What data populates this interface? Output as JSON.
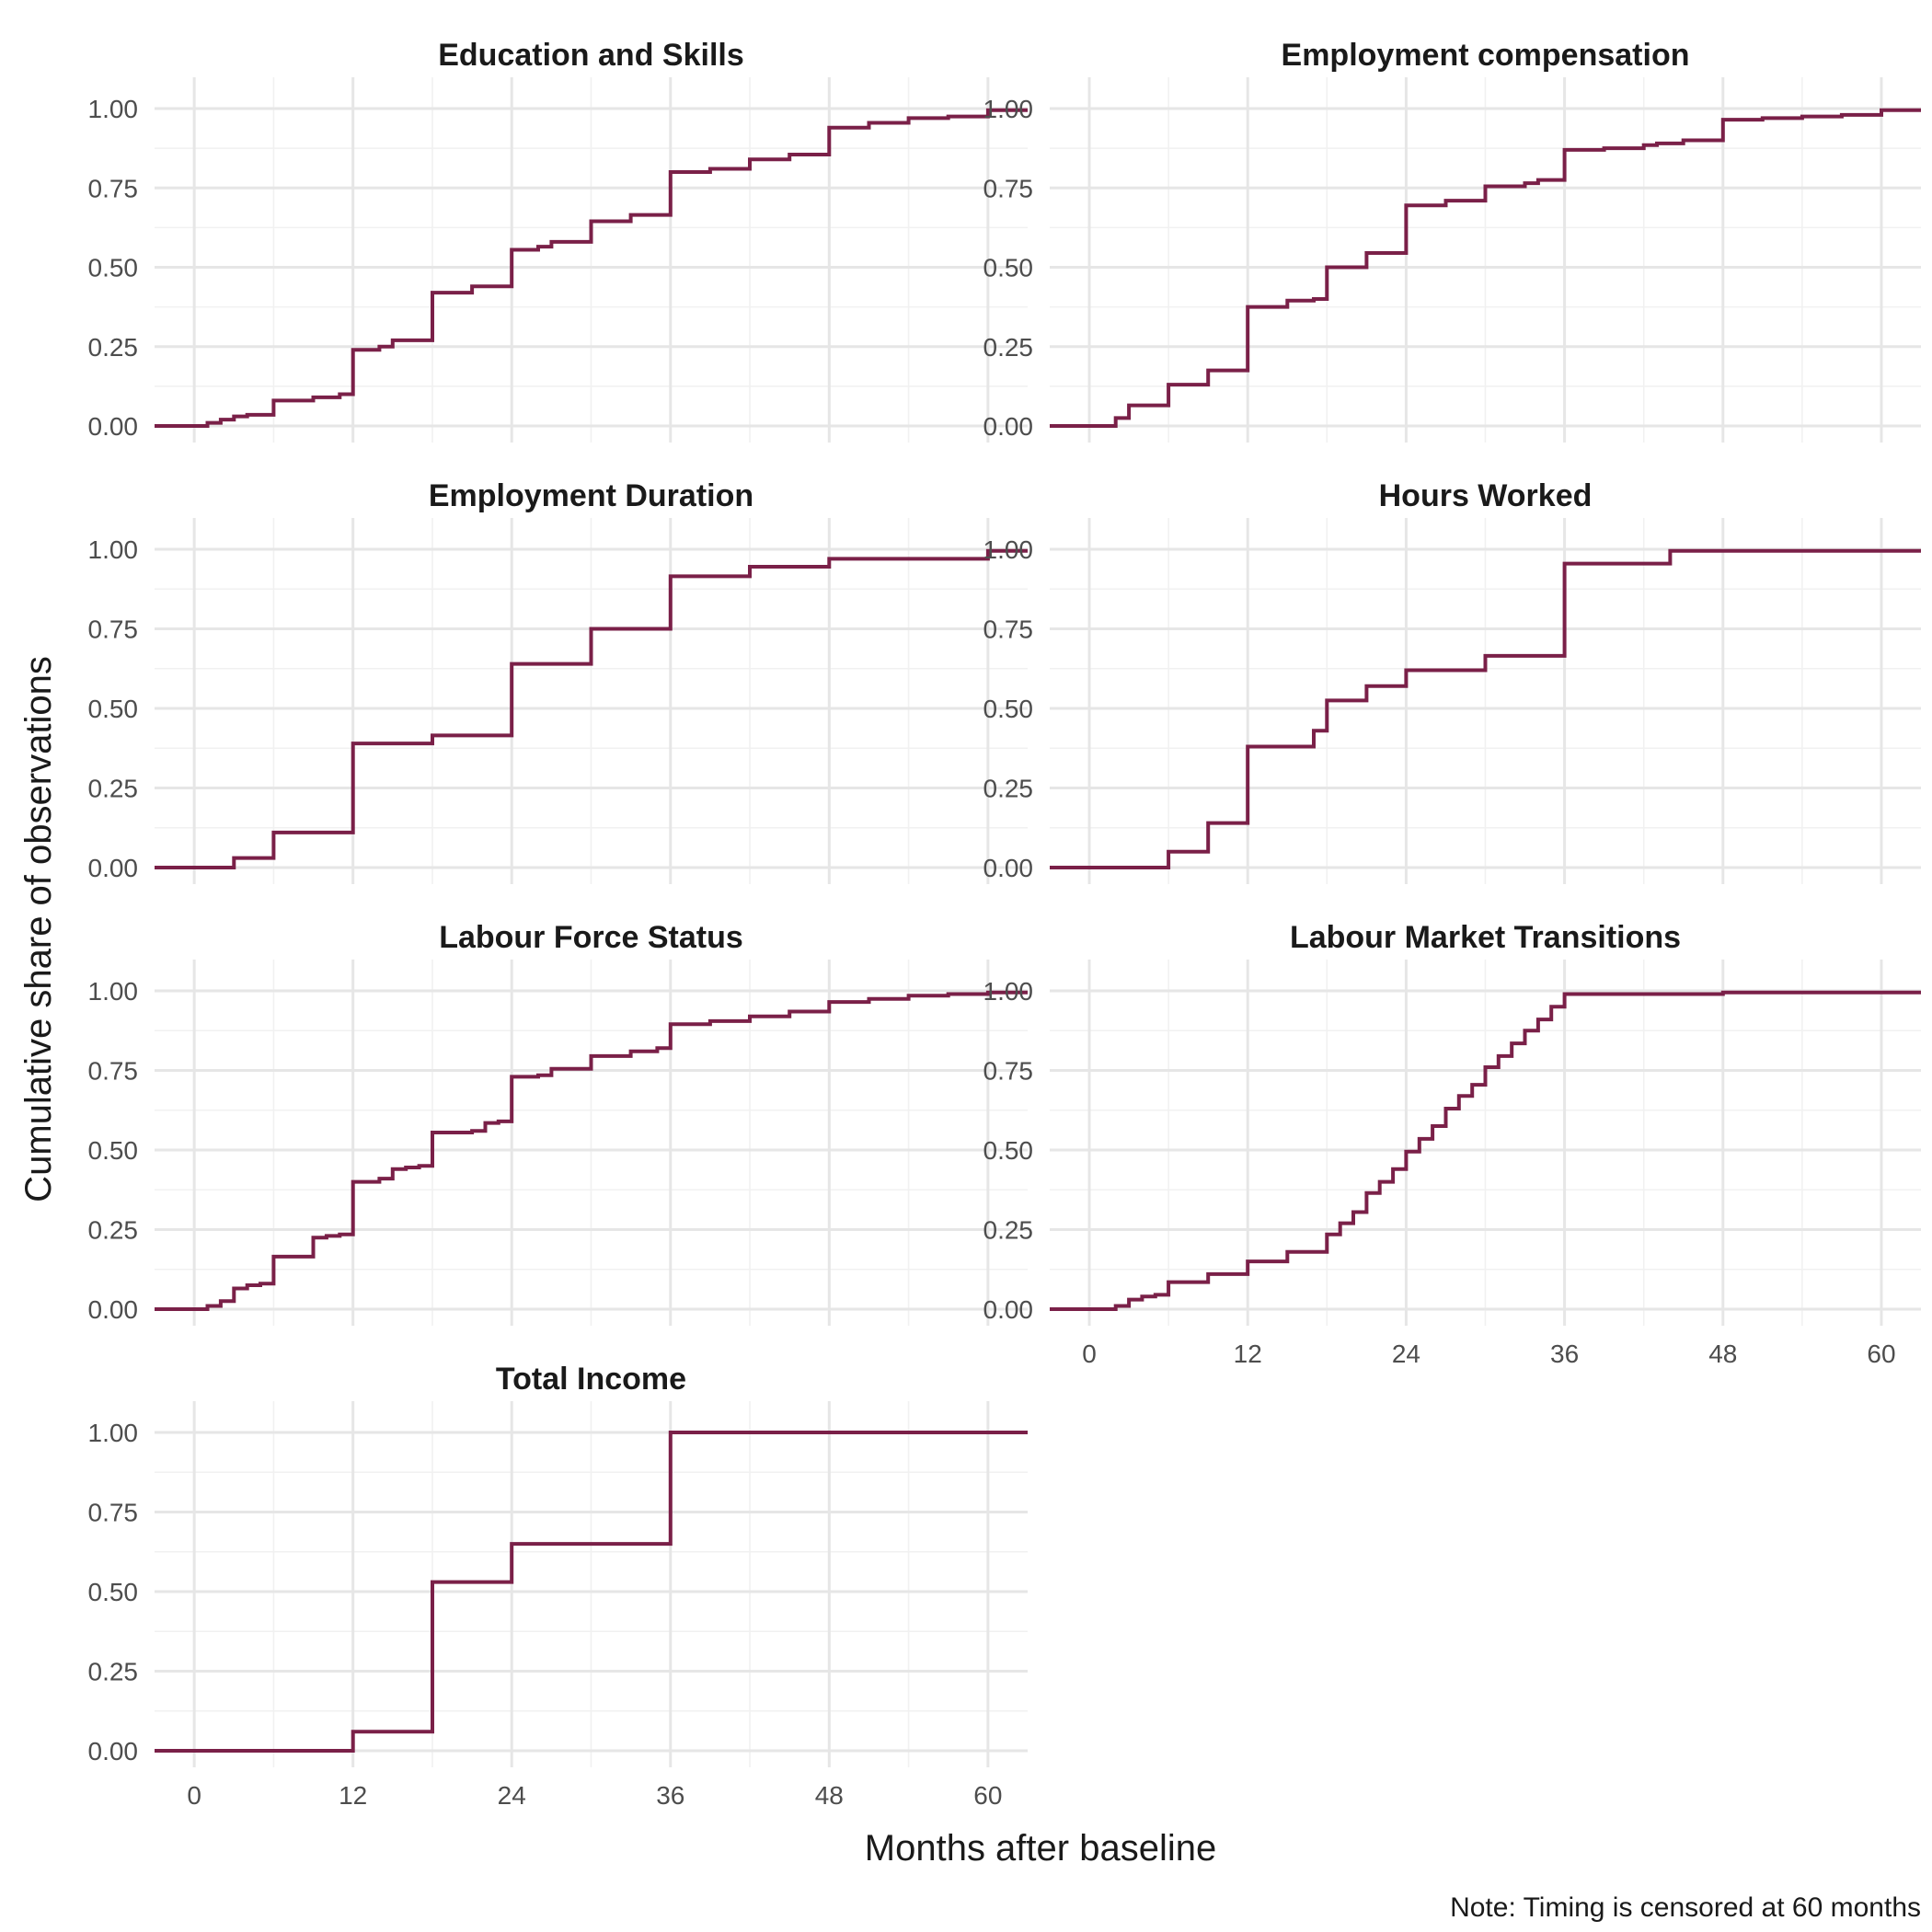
{
  "chart_data": {
    "type": "line",
    "subtype": "step-ecdf-faceted",
    "xlabel": "Months after baseline",
    "ylabel": "Cumulative share of observations",
    "caption": "Note: Timing is censored at 60 months",
    "xlim": [
      -3,
      63
    ],
    "ylim": [
      0,
      1
    ],
    "x_ticks": [
      0,
      12,
      24,
      36,
      48,
      60
    ],
    "y_ticks": [
      0,
      0.25,
      0.5,
      0.75,
      1
    ],
    "y_tick_labels": [
      "0.00",
      "0.25",
      "0.50",
      "0.75",
      "1.00"
    ],
    "x_tick_labels": [
      "0",
      "12",
      "24",
      "36",
      "48",
      "60"
    ],
    "line_color": "#7a2048",
    "grid": true,
    "facets": [
      {
        "title": "Education and Skills",
        "steps": [
          [
            -3,
            0
          ],
          [
            1,
            0.01
          ],
          [
            2,
            0.02
          ],
          [
            3,
            0.03
          ],
          [
            4,
            0.035
          ],
          [
            6,
            0.08
          ],
          [
            9,
            0.09
          ],
          [
            11,
            0.1
          ],
          [
            12,
            0.24
          ],
          [
            14,
            0.25
          ],
          [
            15,
            0.27
          ],
          [
            18,
            0.42
          ],
          [
            21,
            0.44
          ],
          [
            24,
            0.555
          ],
          [
            26,
            0.565
          ],
          [
            27,
            0.58
          ],
          [
            30,
            0.645
          ],
          [
            33,
            0.665
          ],
          [
            36,
            0.8
          ],
          [
            39,
            0.81
          ],
          [
            42,
            0.84
          ],
          [
            45,
            0.855
          ],
          [
            48,
            0.94
          ],
          [
            51,
            0.955
          ],
          [
            54,
            0.97
          ],
          [
            57,
            0.975
          ],
          [
            60,
            0.995
          ],
          [
            63,
            0.995
          ]
        ]
      },
      {
        "title": "Employment compensation",
        "steps": [
          [
            -3,
            0
          ],
          [
            2,
            0.025
          ],
          [
            3,
            0.065
          ],
          [
            6,
            0.13
          ],
          [
            9,
            0.175
          ],
          [
            12,
            0.375
          ],
          [
            15,
            0.395
          ],
          [
            17,
            0.4
          ],
          [
            18,
            0.5
          ],
          [
            21,
            0.545
          ],
          [
            24,
            0.695
          ],
          [
            27,
            0.71
          ],
          [
            30,
            0.755
          ],
          [
            33,
            0.765
          ],
          [
            34,
            0.775
          ],
          [
            36,
            0.87
          ],
          [
            39,
            0.875
          ],
          [
            42,
            0.885
          ],
          [
            43,
            0.89
          ],
          [
            45,
            0.9
          ],
          [
            48,
            0.965
          ],
          [
            51,
            0.97
          ],
          [
            54,
            0.975
          ],
          [
            57,
            0.98
          ],
          [
            60,
            0.995
          ],
          [
            63,
            0.995
          ]
        ]
      },
      {
        "title": "Employment Duration",
        "steps": [
          [
            -3,
            0
          ],
          [
            3,
            0.03
          ],
          [
            6,
            0.11
          ],
          [
            12,
            0.39
          ],
          [
            18,
            0.415
          ],
          [
            24,
            0.64
          ],
          [
            30,
            0.75
          ],
          [
            36,
            0.915
          ],
          [
            42,
            0.945
          ],
          [
            48,
            0.97
          ],
          [
            60,
            0.995
          ],
          [
            63,
            0.995
          ]
        ]
      },
      {
        "title": "Hours Worked",
        "steps": [
          [
            -3,
            0
          ],
          [
            6,
            0.05
          ],
          [
            9,
            0.14
          ],
          [
            12,
            0.38
          ],
          [
            17,
            0.43
          ],
          [
            18,
            0.525
          ],
          [
            21,
            0.57
          ],
          [
            24,
            0.62
          ],
          [
            30,
            0.665
          ],
          [
            36,
            0.955
          ],
          [
            44,
            0.995
          ],
          [
            63,
            0.995
          ]
        ]
      },
      {
        "title": "Labour Force Status",
        "steps": [
          [
            -3,
            0
          ],
          [
            1,
            0.01
          ],
          [
            2,
            0.025
          ],
          [
            3,
            0.065
          ],
          [
            4,
            0.075
          ],
          [
            5,
            0.08
          ],
          [
            6,
            0.165
          ],
          [
            9,
            0.225
          ],
          [
            10,
            0.23
          ],
          [
            11,
            0.235
          ],
          [
            12,
            0.4
          ],
          [
            14,
            0.41
          ],
          [
            15,
            0.44
          ],
          [
            16,
            0.445
          ],
          [
            17,
            0.45
          ],
          [
            18,
            0.555
          ],
          [
            21,
            0.56
          ],
          [
            22,
            0.585
          ],
          [
            23,
            0.59
          ],
          [
            24,
            0.73
          ],
          [
            26,
            0.735
          ],
          [
            27,
            0.755
          ],
          [
            30,
            0.795
          ],
          [
            33,
            0.81
          ],
          [
            35,
            0.82
          ],
          [
            36,
            0.895
          ],
          [
            39,
            0.905
          ],
          [
            42,
            0.92
          ],
          [
            45,
            0.935
          ],
          [
            48,
            0.965
          ],
          [
            51,
            0.975
          ],
          [
            54,
            0.985
          ],
          [
            57,
            0.99
          ],
          [
            60,
            0.995
          ],
          [
            63,
            0.995
          ]
        ]
      },
      {
        "title": "Labour Market Transitions",
        "steps": [
          [
            -3,
            0
          ],
          [
            2,
            0.01
          ],
          [
            3,
            0.03
          ],
          [
            4,
            0.04
          ],
          [
            5,
            0.045
          ],
          [
            6,
            0.085
          ],
          [
            9,
            0.11
          ],
          [
            12,
            0.15
          ],
          [
            15,
            0.18
          ],
          [
            18,
            0.235
          ],
          [
            19,
            0.27
          ],
          [
            20,
            0.305
          ],
          [
            21,
            0.365
          ],
          [
            22,
            0.4
          ],
          [
            23,
            0.44
          ],
          [
            24,
            0.495
          ],
          [
            25,
            0.535
          ],
          [
            26,
            0.575
          ],
          [
            27,
            0.63
          ],
          [
            28,
            0.67
          ],
          [
            29,
            0.705
          ],
          [
            30,
            0.76
          ],
          [
            31,
            0.795
          ],
          [
            32,
            0.835
          ],
          [
            33,
            0.875
          ],
          [
            34,
            0.91
          ],
          [
            35,
            0.95
          ],
          [
            36,
            0.99
          ],
          [
            48,
            0.995
          ],
          [
            63,
            0.995
          ]
        ]
      },
      {
        "title": "Total Income",
        "steps": [
          [
            -3,
            0
          ],
          [
            12,
            0.06
          ],
          [
            18,
            0.53
          ],
          [
            24,
            0.65
          ],
          [
            36,
            1.0
          ],
          [
            63,
            1.0
          ]
        ]
      }
    ]
  }
}
